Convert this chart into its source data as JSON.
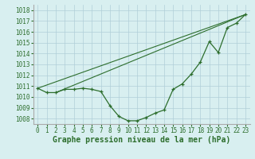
{
  "title": "Graphe pression niveau de la mer (hPa)",
  "bg_color": "#d8eff0",
  "grid_color": "#b0cfd8",
  "line_color": "#2d6e2d",
  "xlim": [
    -0.5,
    23.5
  ],
  "ylim": [
    1007.5,
    1018.5
  ],
  "yticks": [
    1008,
    1009,
    1010,
    1011,
    1012,
    1013,
    1014,
    1015,
    1016,
    1017,
    1018
  ],
  "xticks": [
    0,
    1,
    2,
    3,
    4,
    5,
    6,
    7,
    8,
    9,
    10,
    11,
    12,
    13,
    14,
    15,
    16,
    17,
    18,
    19,
    20,
    21,
    22,
    23
  ],
  "series_main": [
    1010.8,
    1010.4,
    1010.4,
    1010.7,
    1010.7,
    1010.8,
    1010.7,
    1010.5,
    1009.2,
    1008.2,
    1007.8,
    1007.8,
    1008.1,
    1008.5,
    1008.8,
    1010.7,
    1011.2,
    1012.1,
    1013.2,
    1015.1,
    1014.1,
    1016.4,
    1016.8,
    1017.6
  ],
  "line1_x": [
    0,
    23
  ],
  "line1_y": [
    1010.8,
    1017.6
  ],
  "line2_x": [
    2,
    23
  ],
  "line2_y": [
    1010.4,
    1017.6
  ],
  "title_fontsize": 7,
  "tick_fontsize": 5.5
}
